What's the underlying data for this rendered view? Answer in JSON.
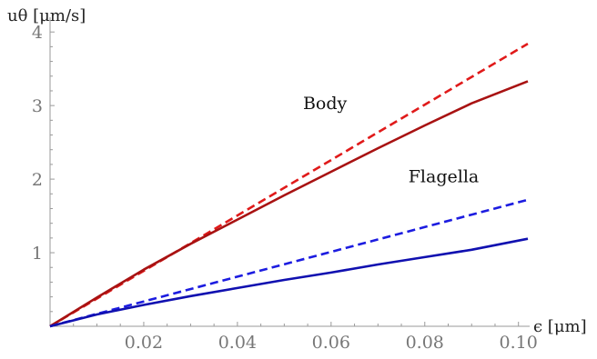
{
  "chart_data": {
    "type": "line",
    "title": "",
    "xlabel": "ϵ [μm]",
    "ylabel": "uθ [μm/s]",
    "xlim": [
      0,
      0.102
    ],
    "ylim": [
      0,
      4.2
    ],
    "x_ticks": [
      0.02,
      0.04,
      0.06,
      0.08,
      0.1
    ],
    "x_tick_labels": [
      "0.02",
      "0.04",
      "0.06",
      "0.08",
      "0.10"
    ],
    "y_ticks": [
      1,
      2,
      3,
      4
    ],
    "y_tick_labels": [
      "1",
      "2",
      "3",
      "4"
    ],
    "grid": false,
    "legend": "none",
    "series": [
      {
        "x": [
          0,
          0.102
        ],
        "y": [
          0,
          3.84
        ],
        "color": "#e01a1a",
        "dash": true
      },
      {
        "x": [
          0,
          0.01,
          0.02,
          0.03,
          0.04,
          0.05,
          0.06,
          0.07,
          0.08,
          0.09,
          0.102
        ],
        "y": [
          0,
          0.39,
          0.77,
          1.12,
          1.45,
          1.78,
          2.1,
          2.42,
          2.73,
          3.03,
          3.33
        ],
        "color": "#a81212",
        "dash": false
      },
      {
        "x": [
          0,
          0.102
        ],
        "y": [
          0,
          1.72
        ],
        "color": "#1c1ce0",
        "dash": true
      },
      {
        "x": [
          0,
          0.01,
          0.02,
          0.03,
          0.04,
          0.05,
          0.06,
          0.07,
          0.08,
          0.09,
          0.102
        ],
        "y": [
          0,
          0.16,
          0.29,
          0.41,
          0.52,
          0.63,
          0.73,
          0.84,
          0.94,
          1.04,
          1.19
        ],
        "color": "#1010b0",
        "dash": false
      }
    ],
    "annotations": [
      {
        "text": "Body",
        "x": 0.054,
        "y": 2.95
      },
      {
        "text": "Flagella",
        "x": 0.0765,
        "y": 1.96
      }
    ]
  }
}
